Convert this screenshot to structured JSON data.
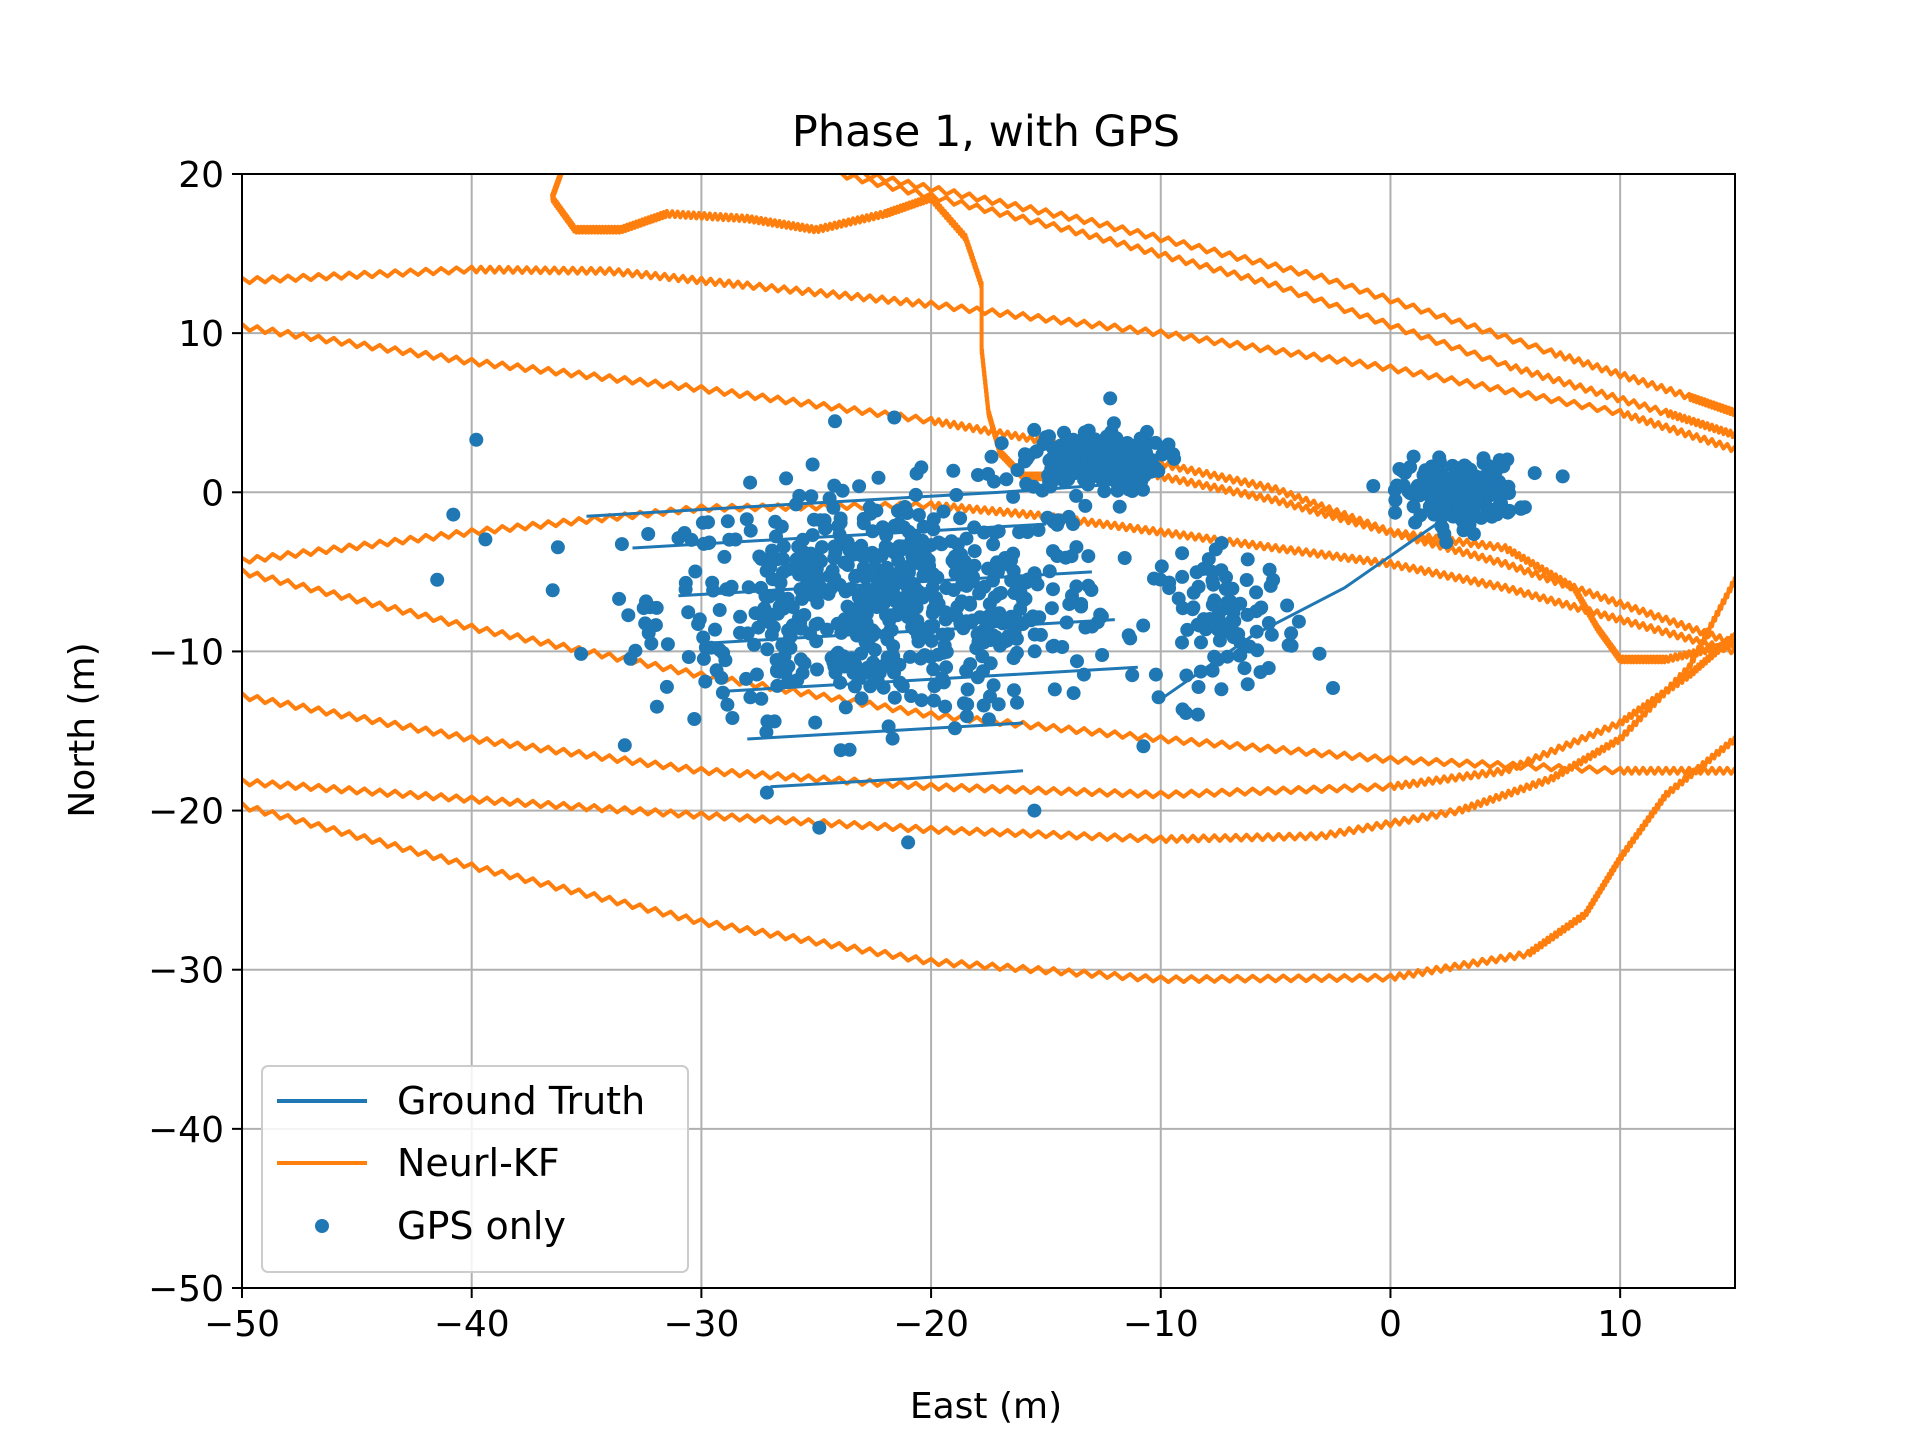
{
  "chart_data": {
    "type": "line",
    "title": "Phase 1, with GPS",
    "xlabel": "East (m)",
    "ylabel": "North (m)",
    "xlim": [
      -50,
      15
    ],
    "ylim": [
      -50,
      20
    ],
    "xticks": [
      -50,
      -40,
      -30,
      -20,
      -10,
      0,
      10
    ],
    "yticks": [
      -50,
      -40,
      -30,
      -20,
      -10,
      0,
      10,
      20
    ],
    "xtick_labels": [
      "−50",
      "−40",
      "−30",
      "−20",
      "−10",
      "0",
      "10"
    ],
    "ytick_labels": [
      "−50",
      "−40",
      "−30",
      "−20",
      "−10",
      "0",
      "10",
      "20"
    ],
    "grid": true,
    "legend_position": "lower-left",
    "colors": {
      "ground_truth": "#1f77b4",
      "neurl_kf": "#ff7f0e",
      "gps": "#1f77b4"
    },
    "series": [
      {
        "name": "Ground Truth",
        "type": "line",
        "color": "#1f77b4",
        "segments": [
          [
            [
              -35,
              -1.5
            ],
            [
              -29,
              -1.0
            ],
            [
              -23,
              -0.5
            ],
            [
              -17,
              0
            ],
            [
              -12,
              0.5
            ]
          ],
          [
            [
              -33,
              -3.5
            ],
            [
              -27,
              -3.0
            ],
            [
              -21,
              -2.5
            ],
            [
              -15,
              -2.0
            ]
          ],
          [
            [
              -31,
              -6.5
            ],
            [
              -25,
              -6.0
            ],
            [
              -19,
              -5.5
            ],
            [
              -13,
              -5.0
            ]
          ],
          [
            [
              -30,
              -9.5
            ],
            [
              -24,
              -9.0
            ],
            [
              -18,
              -8.5
            ],
            [
              -12,
              -8.0
            ]
          ],
          [
            [
              -29,
              -12.5
            ],
            [
              -23,
              -12.0
            ],
            [
              -17,
              -11.5
            ],
            [
              -11,
              -11.0
            ]
          ],
          [
            [
              -28,
              -15.5
            ],
            [
              -22,
              -15.0
            ],
            [
              -16,
              -14.5
            ]
          ],
          [
            [
              -27,
              -18.5
            ],
            [
              -21,
              -18.0
            ],
            [
              -16,
              -17.5
            ]
          ],
          [
            [
              -10,
              -13
            ],
            [
              -6,
              -9
            ],
            [
              -2,
              -6
            ],
            [
              1,
              -3
            ],
            [
              3,
              -1
            ]
          ]
        ]
      },
      {
        "name": "Neurl-KF",
        "type": "line",
        "color": "#ff7f0e",
        "segments": [
          [
            [
              -50,
              13.3
            ],
            [
              -40,
              14.0
            ],
            [
              -34,
              13.9
            ],
            [
              -28,
              13.0
            ],
            [
              -20,
              11.8
            ],
            [
              -10,
              10.0
            ],
            [
              0,
              7.8
            ],
            [
              10,
              5.0
            ],
            [
              15,
              2.7
            ]
          ],
          [
            [
              -50,
              10.4
            ],
            [
              -40,
              8.2
            ],
            [
              -30,
              6.5
            ],
            [
              -20,
              4.5
            ],
            [
              -15,
              3.2
            ],
            [
              -10,
              1.8
            ],
            [
              -5,
              0.2
            ],
            [
              0,
              -2.5
            ],
            [
              5,
              -4.5
            ],
            [
              10,
              -7.0
            ],
            [
              15,
              -9.5
            ]
          ],
          [
            [
              -50,
              -4.3
            ],
            [
              -40,
              -2.5
            ],
            [
              -30,
              -1.0
            ],
            [
              -20,
              -0.8
            ],
            [
              -15,
              -1.5
            ],
            [
              -10,
              -2.5
            ],
            [
              -5,
              -3.5
            ],
            [
              0,
              -4.5
            ],
            [
              5,
              -6.0
            ],
            [
              10,
              -8.0
            ],
            [
              15,
              -10.0
            ]
          ],
          [
            [
              -50,
              -5.0
            ],
            [
              -40,
              -8.5
            ],
            [
              -30,
              -11.5
            ],
            [
              -20,
              -14.0
            ],
            [
              -10,
              -15.5
            ],
            [
              0,
              -16.8
            ],
            [
              10,
              -17.5
            ],
            [
              15,
              -17.5
            ]
          ],
          [
            [
              -50,
              -12.8
            ],
            [
              -40,
              -15.5
            ],
            [
              -30,
              -17.5
            ],
            [
              -20,
              -18.5
            ],
            [
              -10,
              -19.0
            ],
            [
              0,
              -18.5
            ],
            [
              5,
              -17.5
            ],
            [
              10,
              -14.5
            ],
            [
              13,
              -11.5
            ],
            [
              15,
              -9.0
            ]
          ],
          [
            [
              -50,
              -18.2
            ],
            [
              -40,
              -19.3
            ],
            [
              -30,
              -20.3
            ],
            [
              -20,
              -21.2
            ],
            [
              -10,
              -21.8
            ],
            [
              -3,
              -21.6
            ],
            [
              3,
              -20.0
            ],
            [
              7,
              -18.0
            ],
            [
              10,
              -15.5
            ],
            [
              13,
              -11.0
            ],
            [
              15,
              -5.5
            ]
          ],
          [
            [
              -50,
              -19.7
            ],
            [
              -40,
              -23.5
            ],
            [
              -30,
              -27.0
            ],
            [
              -20,
              -29.5
            ],
            [
              -10,
              -30.6
            ],
            [
              0,
              -30.5
            ],
            [
              6,
              -29.0
            ],
            [
              8.5,
              -26.5
            ],
            [
              10,
              -23.0
            ],
            [
              12,
              -19.0
            ],
            [
              15,
              -15.5
            ]
          ],
          [
            [
              -24,
              20
            ],
            [
              -14,
              16.5
            ],
            [
              -5,
              13.0
            ],
            [
              5,
              8.0
            ],
            [
              12,
              5.0
            ],
            [
              15,
              3.6
            ]
          ],
          [
            [
              -23,
              20
            ],
            [
              -13,
              17.0
            ],
            [
              -3,
              13.5
            ],
            [
              7,
              8.8
            ],
            [
              13,
              6.0
            ],
            [
              15,
              5.0
            ]
          ],
          [
            [
              -36,
              20.5
            ],
            [
              -36.5,
              18.5
            ],
            [
              -35.5,
              16.5
            ],
            [
              -33.5,
              16.5
            ],
            [
              -31.5,
              17.5
            ],
            [
              -28,
              17.2
            ],
            [
              -25,
              16.5
            ],
            [
              -22,
              17.5
            ],
            [
              -20,
              18.5
            ],
            [
              -18.5,
              16.0
            ],
            [
              -17.8,
              13.0
            ],
            [
              -17.8,
              9.0
            ],
            [
              -17.5,
              5.0
            ],
            [
              -17,
              2.5
            ],
            [
              -16,
              1.0
            ],
            [
              -15,
              1.0
            ],
            [
              -14.2,
              2.5
            ],
            [
              -15.0,
              0
            ]
          ],
          [
            [
              -14,
              2.5
            ],
            [
              -10,
              1.0
            ],
            [
              -5,
              -0.5
            ],
            [
              0,
              -2.5
            ],
            [
              5,
              -3.5
            ],
            [
              8,
              -6.0
            ],
            [
              9,
              -8.5
            ],
            [
              10,
              -10.5
            ],
            [
              12,
              -10.5
            ],
            [
              15,
              -9.5
            ]
          ]
        ]
      },
      {
        "name": "GPS only",
        "type": "scatter",
        "color": "#1f77b4",
        "note": "dense clusters of noisy GPS fixes",
        "clusters": [
          {
            "center": [
              -22,
              -7
            ],
            "spread": [
              10,
              7
            ]
          },
          {
            "center": [
              -13,
              2
            ],
            "spread": [
              3,
              2
            ]
          },
          {
            "center": [
              3,
              0
            ],
            "spread": [
              2.5,
              2.0
            ]
          },
          {
            "center": [
              -7,
              -8
            ],
            "spread": [
              3,
              4
            ]
          }
        ],
        "points_sample": [
          [
            -39.8,
            3.3
          ],
          [
            -40.8,
            -1.4
          ],
          [
            -21.6,
            4.7
          ],
          [
            -12.2,
            5.9
          ],
          [
            -21,
            -22
          ],
          [
            -2.5,
            -12.3
          ],
          [
            7.5,
            1.0
          ],
          [
            -15.5,
            -20
          ],
          [
            -41.5,
            -5.5
          ]
        ]
      }
    ]
  }
}
